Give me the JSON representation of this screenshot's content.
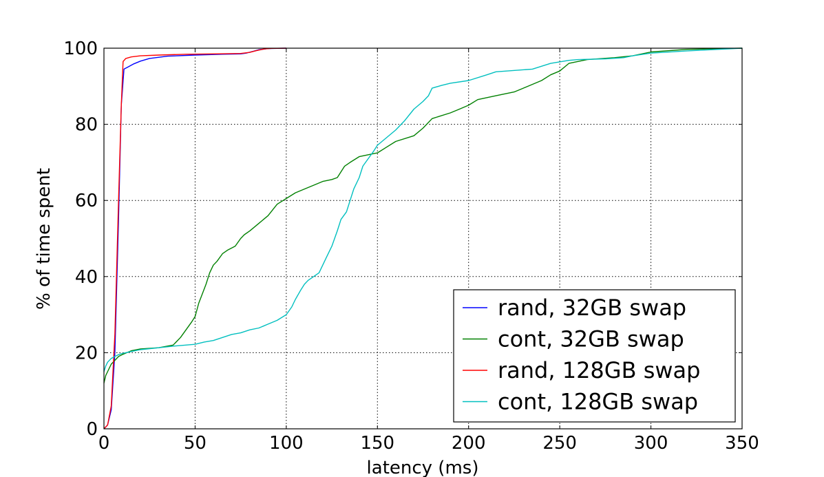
{
  "chart_data": {
    "type": "line",
    "title": "",
    "xlabel": "latency (ms)",
    "ylabel": "% of time spent",
    "xlim": [
      0,
      350
    ],
    "ylim": [
      0,
      100
    ],
    "xticks": [
      "0",
      "50",
      "100",
      "150",
      "200",
      "250",
      "300",
      "350"
    ],
    "yticks": [
      "0",
      "20",
      "40",
      "60",
      "80",
      "100"
    ],
    "grid": true,
    "legend_position": "lower-right",
    "series": [
      {
        "name": "rand, 32GB swap",
        "color": "#0000ff",
        "x": [
          0,
          2,
          4,
          6,
          8,
          9.5,
          11,
          13,
          16,
          20,
          25,
          35,
          50,
          65,
          75,
          78,
          82,
          85,
          90,
          100
        ],
        "y": [
          0,
          1,
          5,
          20,
          55,
          85,
          94.5,
          95,
          95.8,
          96.6,
          97.3,
          97.9,
          98.2,
          98.4,
          98.5,
          98.7,
          99.2,
          99.6,
          99.9,
          100
        ]
      },
      {
        "name": "cont, 32GB swap",
        "color": "#008000",
        "x": [
          0,
          1,
          2,
          4,
          6,
          8,
          10,
          15,
          20,
          30,
          38,
          42,
          45,
          48,
          50,
          52,
          54,
          56,
          58,
          60,
          62,
          65,
          68,
          72,
          75,
          77,
          80,
          85,
          90,
          95,
          100,
          105,
          110,
          115,
          120,
          125,
          128,
          132,
          135,
          140,
          145,
          150,
          155,
          160,
          170,
          175,
          180,
          190,
          195,
          200,
          205,
          215,
          225,
          230,
          240,
          245,
          250,
          255,
          265,
          280,
          290,
          300,
          320,
          350
        ],
        "y": [
          12,
          14,
          15,
          17,
          18,
          19,
          19.5,
          20.5,
          21,
          21.3,
          22,
          24,
          26,
          28,
          29.5,
          33,
          35.5,
          38,
          41,
          43,
          44,
          46,
          47,
          48,
          50,
          51,
          52,
          54,
          56,
          59,
          60.5,
          62,
          63,
          64,
          65,
          65.5,
          66,
          69,
          70,
          71.5,
          72,
          72.5,
          74,
          75.5,
          77,
          79,
          81.5,
          83,
          84,
          85,
          86.5,
          87.5,
          88.5,
          89.5,
          91.5,
          93,
          94,
          96,
          97,
          97.5,
          98,
          99,
          99.7,
          100
        ]
      },
      {
        "name": "rand, 128GB swap",
        "color": "#ff0000",
        "x": [
          0,
          2,
          4,
          6,
          8,
          9.5,
          10.5,
          12,
          15,
          20,
          30,
          45,
          60,
          75,
          80,
          84,
          88,
          92,
          100
        ],
        "y": [
          0,
          1,
          6,
          25,
          60,
          85,
          96.5,
          97.3,
          97.7,
          98,
          98.2,
          98.4,
          98.5,
          98.6,
          98.9,
          99.4,
          99.8,
          99.95,
          100
        ]
      },
      {
        "name": "cont, 128GB swap",
        "color": "#00bfbf",
        "x": [
          0,
          1,
          2,
          4,
          6,
          8,
          10,
          12,
          15,
          20,
          30,
          40,
          50,
          55,
          60,
          65,
          70,
          75,
          80,
          85,
          90,
          95,
          100,
          103,
          105,
          108,
          110,
          112,
          115,
          118,
          120,
          122,
          125,
          128,
          130,
          133,
          135,
          137,
          140,
          142,
          145,
          148,
          150,
          155,
          160,
          165,
          170,
          175,
          178,
          180,
          185,
          190,
          200,
          210,
          215,
          235,
          245,
          255,
          260,
          275,
          285,
          290,
          300,
          320,
          350
        ],
        "y": [
          15,
          16.5,
          17.5,
          18.5,
          19,
          19.5,
          19.8,
          20,
          20.3,
          20.8,
          21.3,
          21.8,
          22.2,
          22.8,
          23.2,
          24,
          24.8,
          25.2,
          26,
          26.5,
          27.5,
          28.5,
          30,
          32,
          34,
          36.5,
          38,
          39,
          40,
          41,
          43,
          45,
          48,
          52,
          55,
          57,
          60,
          63,
          66,
          69,
          71,
          73,
          74.5,
          76.5,
          78.5,
          81,
          84,
          86,
          87.5,
          89.5,
          90.2,
          90.8,
          91.5,
          93,
          93.8,
          94.5,
          96,
          96.8,
          97,
          97.2,
          97.5,
          98,
          98.7,
          99.3,
          100
        ]
      }
    ]
  }
}
